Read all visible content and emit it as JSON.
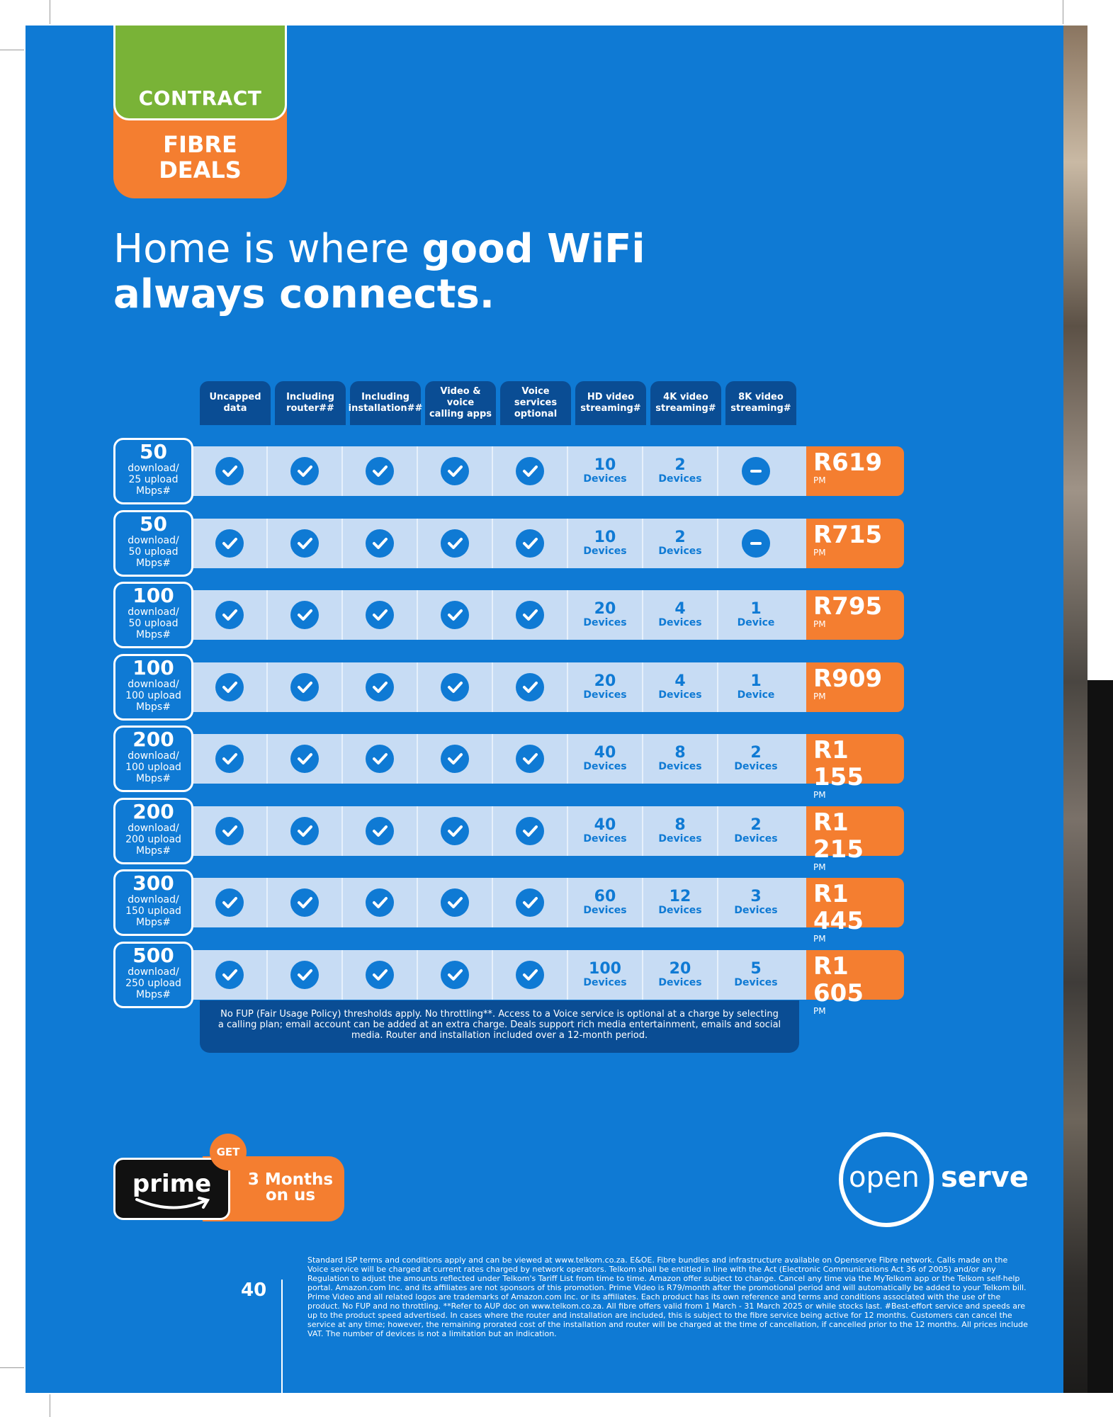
{
  "badge": {
    "top": "CONTRACT",
    "bottom": "FIBRE\nDEALS"
  },
  "headline": {
    "line1_normal": "Home is where ",
    "line1_bold": "good WiFi",
    "line2_bold": "always connects."
  },
  "columns": [
    "Uncapped\ndata",
    "Including\nrouter##",
    "Including\ninstallation##",
    "Video & voice\ncalling apps",
    "Voice services\noptional",
    "HD video\nstreaming#",
    "4K video\nstreaming#",
    "8K video\nstreaming#"
  ],
  "rows": [
    {
      "speed": "50",
      "detail": "download/\n25 upload\nMbps#",
      "hd": {
        "n": "10",
        "u": "Devices"
      },
      "k4": {
        "n": "2",
        "u": "Devices"
      },
      "k8": null,
      "price": "R619",
      "pm": "PM"
    },
    {
      "speed": "50",
      "detail": "download/\n50 upload\nMbps#",
      "hd": {
        "n": "10",
        "u": "Devices"
      },
      "k4": {
        "n": "2",
        "u": "Devices"
      },
      "k8": null,
      "price": "R715",
      "pm": "PM"
    },
    {
      "speed": "100",
      "detail": "download/\n50 upload\nMbps#",
      "hd": {
        "n": "20",
        "u": "Devices"
      },
      "k4": {
        "n": "4",
        "u": "Devices"
      },
      "k8": {
        "n": "1",
        "u": "Device"
      },
      "price": "R795",
      "pm": "PM"
    },
    {
      "speed": "100",
      "detail": "download/\n100 upload\nMbps#",
      "hd": {
        "n": "20",
        "u": "Devices"
      },
      "k4": {
        "n": "4",
        "u": "Devices"
      },
      "k8": {
        "n": "1",
        "u": "Device"
      },
      "price": "R909",
      "pm": "PM"
    },
    {
      "speed": "200",
      "detail": "download/\n100 upload\nMbps#",
      "hd": {
        "n": "40",
        "u": "Devices"
      },
      "k4": {
        "n": "8",
        "u": "Devices"
      },
      "k8": {
        "n": "2",
        "u": "Devices"
      },
      "price": "R1 155",
      "pm": "PM"
    },
    {
      "speed": "200",
      "detail": "download/\n200 upload\nMbps#",
      "hd": {
        "n": "40",
        "u": "Devices"
      },
      "k4": {
        "n": "8",
        "u": "Devices"
      },
      "k8": {
        "n": "2",
        "u": "Devices"
      },
      "price": "R1 215",
      "pm": "PM"
    },
    {
      "speed": "300",
      "detail": "download/\n150 upload\nMbps#",
      "hd": {
        "n": "60",
        "u": "Devices"
      },
      "k4": {
        "n": "12",
        "u": "Devices"
      },
      "k8": {
        "n": "3",
        "u": "Devices"
      },
      "price": "R1 445",
      "pm": "PM"
    },
    {
      "speed": "500",
      "detail": "download/\n250 upload\nMbps#",
      "hd": {
        "n": "100",
        "u": "Devices"
      },
      "k4": {
        "n": "20",
        "u": "Devices"
      },
      "k8": {
        "n": "5",
        "u": "Devices"
      },
      "price": "R1 605",
      "pm": "PM"
    }
  ],
  "note": "No FUP (Fair Usage Policy) thresholds apply. No throttling**. Access to a Voice service is optional at a charge by selecting a calling plan; email account can be added at an extra charge. Deals support rich media entertainment, emails and social media. Router and installation included over a 12-month period.",
  "prime": {
    "logo": "prime",
    "get": "GET",
    "offer": "3 Months\non us"
  },
  "openserve": {
    "open": "open",
    "serve": "serve"
  },
  "page_number": "40",
  "legal": "Standard ISP terms and conditions apply and can be viewed at www.telkom.co.za. E&OE. Fibre bundles and infrastructure available on Openserve Fibre network. Calls made on the Voice service will be charged at current rates charged by network operators. Telkom shall be entitled in line with the Act (Electronic Communications Act 36 of 2005) and/or any Regulation to adjust the amounts reflected under Telkom's Tariff List from time to time. Amazon offer subject to change. Cancel any time via the MyTelkom app or the Telkom self-help portal. Amazon.com Inc. and its affiliates are not sponsors of this promotion. Prime Video is R79/month after the promotional period and will automatically be added to your Telkom bill. Prime Video and all related logos are trademarks of Amazon.com Inc. or its affiliates. Each product has its own reference and terms and conditions associated with the use of the product. No FUP and no throttling. **Refer to AUP doc on www.telkom.co.za. All fibre offers valid from 1 March - 31 March 2025 or while stocks last. #Best-effort service and speeds are up to the product speed advertised. In cases where the router and installation are included, this is subject to the fibre service being active for 12 months. Customers can cancel the service at any time; however, the remaining prorated cost of the installation and router will be charged at the time of cancellation, if cancelled prior to the 12 months. All prices include VAT. The number of devices is not a limitation but an indication.",
  "colors": {
    "page_blue": "#0f7ad4",
    "navy": "#0a4d94",
    "orange": "#f47e30",
    "green": "#79b337",
    "row_band": "#c7dcf4"
  }
}
